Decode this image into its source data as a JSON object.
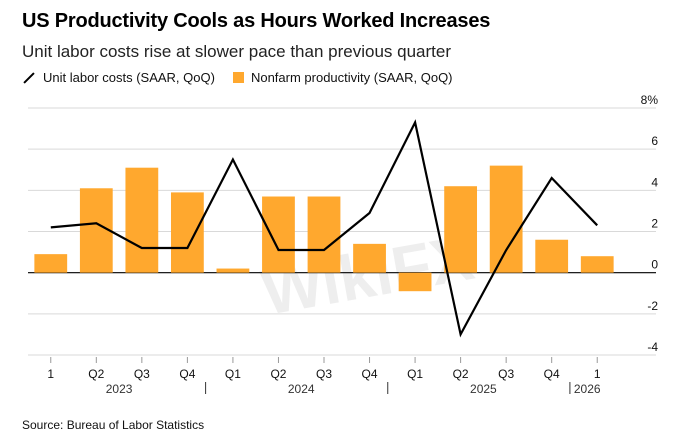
{
  "header": {
    "title": "US Productivity Cools as Hours Worked Increases",
    "subtitle": "Unit labor costs rise at slower pace than previous quarter"
  },
  "legend": {
    "line_label": "Unit labor costs (SAAR, QoQ)",
    "bar_label": "Nonfarm productivity (SAAR, QoQ)"
  },
  "source": "Source: Bureau of Labor Statistics",
  "watermark": "WikiFX",
  "colors": {
    "bar": "#ffa82e",
    "line": "#000000",
    "grid": "#d9d9d9",
    "zero": "#000000"
  },
  "chart_data": {
    "type": "bar",
    "categories": [
      "1",
      "Q2",
      "Q3",
      "Q4",
      "Q1",
      "Q2",
      "Q3",
      "Q4",
      "Q1",
      "Q2",
      "Q3",
      "Q4",
      "1"
    ],
    "year_labels": [
      "2023",
      "2024",
      "2025",
      "2026"
    ],
    "ylim": [
      -4,
      8
    ],
    "yticks": [
      -4,
      -2,
      0,
      2,
      4,
      6,
      8
    ],
    "ytick_labels": [
      "-4",
      "-2",
      "0",
      "2",
      "4",
      "6",
      "8%"
    ],
    "grid": true,
    "legend_position": "top-left",
    "series": [
      {
        "name": "Nonfarm productivity (SAAR, QoQ)",
        "type": "bar",
        "values": [
          0.9,
          4.1,
          5.1,
          3.9,
          0.2,
          3.7,
          3.7,
          1.4,
          -0.9,
          4.2,
          5.2,
          1.6,
          0.8
        ]
      },
      {
        "name": "Unit labor costs (SAAR, QoQ)",
        "type": "line",
        "values": [
          2.2,
          2.4,
          1.2,
          1.2,
          5.5,
          1.1,
          1.1,
          2.9,
          7.3,
          -3.0,
          1.1,
          4.6,
          2.3
        ]
      }
    ]
  }
}
